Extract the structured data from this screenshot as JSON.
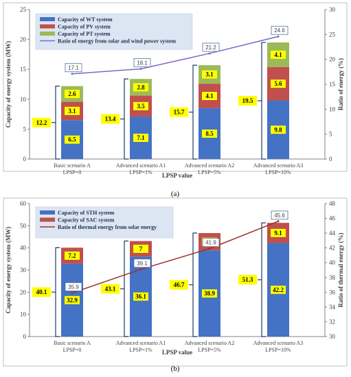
{
  "chart_data": [
    {
      "type": "bar",
      "stacked": true,
      "caption": "(a)",
      "xlabel": "LPSP value",
      "ylabel": "Capacity of energy system (MW)",
      "y2label": "Ratio of energy (%)",
      "ylim": [
        0,
        25
      ],
      "yticks": [
        0,
        5,
        10,
        15,
        20,
        25
      ],
      "y2lim": [
        0,
        30
      ],
      "y2ticks": [
        0,
        5,
        10,
        15,
        20,
        25,
        30
      ],
      "categories": [
        [
          "Basic scenario A",
          "LPSP=0"
        ],
        [
          "Advanced scenario A1",
          "LPSP=1%"
        ],
        [
          "Advanced scenario A2",
          "LPSP=5%"
        ],
        [
          "Advanced scenario A3",
          "LPSP=10%"
        ]
      ],
      "series": [
        {
          "name": "Capacity of WT system",
          "color": "#4472c4",
          "values": [
            6.5,
            7.1,
            8.5,
            9.8
          ]
        },
        {
          "name": "Capacity of PV system",
          "color": "#c0504d",
          "values": [
            3.1,
            3.5,
            4.1,
            5.6
          ]
        },
        {
          "name": "Capacity of PT system",
          "color": "#9bbb59",
          "values": [
            2.6,
            2.8,
            3.1,
            4.1
          ]
        }
      ],
      "totals": [
        "12.2",
        "13.4",
        "15.7",
        "19.5"
      ],
      "line": {
        "name": "Ratio of energy from solar and wind power system",
        "color": "#7b68c8",
        "axis": "right",
        "values": [
          17.1,
          18.1,
          21.2,
          24.6
        ]
      },
      "legend": "top-left"
    },
    {
      "type": "bar",
      "stacked": true,
      "caption": "(b)",
      "xlabel": "LPSP value",
      "ylabel": "Capacity of energy system (MW)",
      "y2label": "Ratio of thermal energy (%)",
      "ylim": [
        0,
        60
      ],
      "yticks": [
        0,
        10,
        20,
        30,
        40,
        50,
        60
      ],
      "y2lim": [
        30,
        48
      ],
      "y2ticks": [
        30,
        32,
        34,
        36,
        38,
        40,
        42,
        44,
        46,
        48
      ],
      "categories": [
        [
          "Basic scenario A",
          "LPSP=0"
        ],
        [
          "Advanced scenario A1",
          "LPSP=1%"
        ],
        [
          "Advanced scenario A2",
          "LPSP=5%"
        ],
        [
          "Advanced scenario A3",
          "LPSP=10%"
        ]
      ],
      "series": [
        {
          "name": "Capacity of STH system",
          "color": "#4472c4",
          "values": [
            32.9,
            36.1,
            38.9,
            42.2
          ]
        },
        {
          "name": "Capacity of SAC system",
          "color": "#c0504d",
          "values": [
            7.2,
            7,
            7.8,
            9.1
          ]
        }
      ],
      "totals": [
        "40.1",
        "43.1",
        "46.7",
        "51.3"
      ],
      "line": {
        "name": "Ratio of thermal energy from solar energy",
        "color": "#a0302a",
        "axis": "right",
        "values": [
          35.9,
          39.1,
          41.9,
          45.6
        ]
      },
      "legend": "top-left"
    }
  ]
}
